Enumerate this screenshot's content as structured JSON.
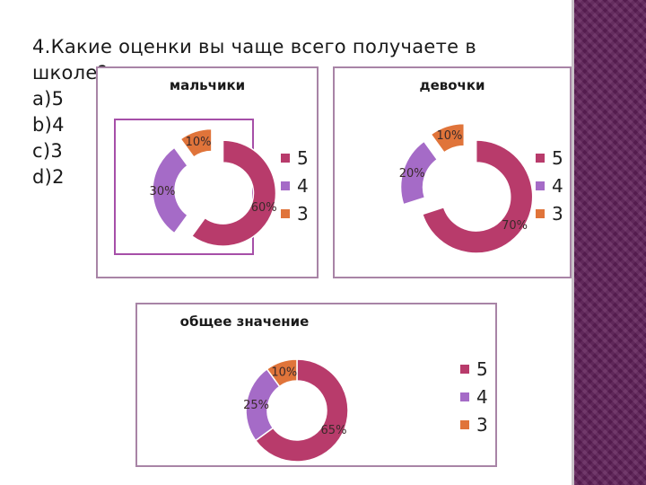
{
  "question": {
    "lines": [
      "4.Какие оценки вы чаще всего получаете в",
      "школе?",
      "a)5",
      "b)4",
      "c)3",
      "d)2"
    ]
  },
  "colors": {
    "grade_5": "#b83b6b",
    "grade_4": "#a56bc7",
    "grade_3": "#e0743a",
    "frame": "#a884a6",
    "inner_frame": "#a64fa8",
    "side_bar": "#5e1f57"
  },
  "chart_data": [
    {
      "type": "pie",
      "style": "donut, exploded",
      "title": "мальчики",
      "categories": [
        "5",
        "4",
        "3"
      ],
      "values": [
        60,
        30,
        10
      ],
      "labels": [
        "60%",
        "30%",
        "10%"
      ],
      "legend": "right"
    },
    {
      "type": "pie",
      "style": "donut, exploded",
      "title": "девочки",
      "categories": [
        "5",
        "4",
        "3"
      ],
      "values": [
        70,
        20,
        10
      ],
      "labels": [
        "70%",
        "20%",
        "10%"
      ],
      "legend": "right"
    },
    {
      "type": "pie",
      "style": "donut",
      "title": "общее значение",
      "categories": [
        "5",
        "4",
        "3"
      ],
      "values": [
        65,
        25,
        10
      ],
      "labels": [
        "65%",
        "25%",
        "10%"
      ],
      "legend": "right"
    }
  ]
}
